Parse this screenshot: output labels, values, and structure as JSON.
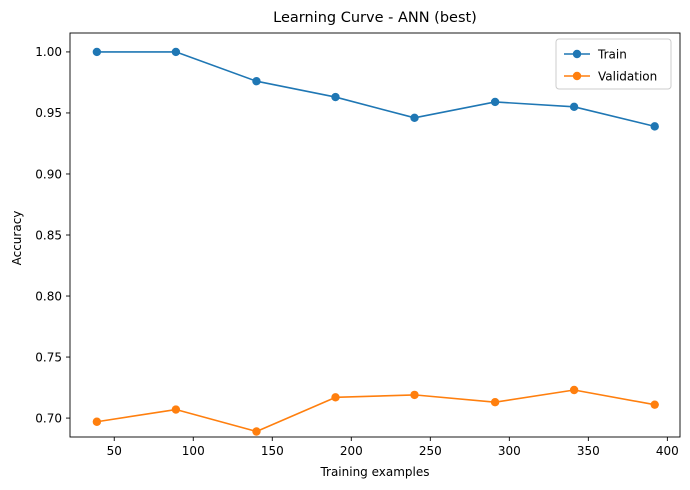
{
  "chart_data": {
    "type": "line",
    "title": "Learning Curve - ANN (best)",
    "xlabel": "Training examples",
    "ylabel": "Accuracy",
    "xlim": [
      22,
      408
    ],
    "ylim": [
      0.6845,
      1.0155
    ],
    "x_ticks": [
      50,
      100,
      150,
      200,
      250,
      300,
      350,
      400
    ],
    "x_tick_labels": [
      "50",
      "100",
      "150",
      "200",
      "250",
      "300",
      "350",
      "400"
    ],
    "y_ticks": [
      0.7,
      0.75,
      0.8,
      0.85,
      0.9,
      0.95,
      1.0
    ],
    "y_tick_labels": [
      "0.70",
      "0.75",
      "0.80",
      "0.85",
      "0.90",
      "0.95",
      "1.00"
    ],
    "grid": false,
    "legend_position": "top-right",
    "x": [
      39,
      89,
      140,
      190,
      240,
      291,
      341,
      392
    ],
    "series": [
      {
        "name": "Train",
        "color": "#1f77b4",
        "marker": "circle",
        "values": [
          1.0,
          1.0,
          0.976,
          0.963,
          0.946,
          0.959,
          0.955,
          0.939
        ]
      },
      {
        "name": "Validation",
        "color": "#ff7f0e",
        "marker": "circle",
        "values": [
          0.697,
          0.707,
          0.689,
          0.717,
          0.719,
          0.713,
          0.723,
          0.711
        ]
      }
    ]
  }
}
